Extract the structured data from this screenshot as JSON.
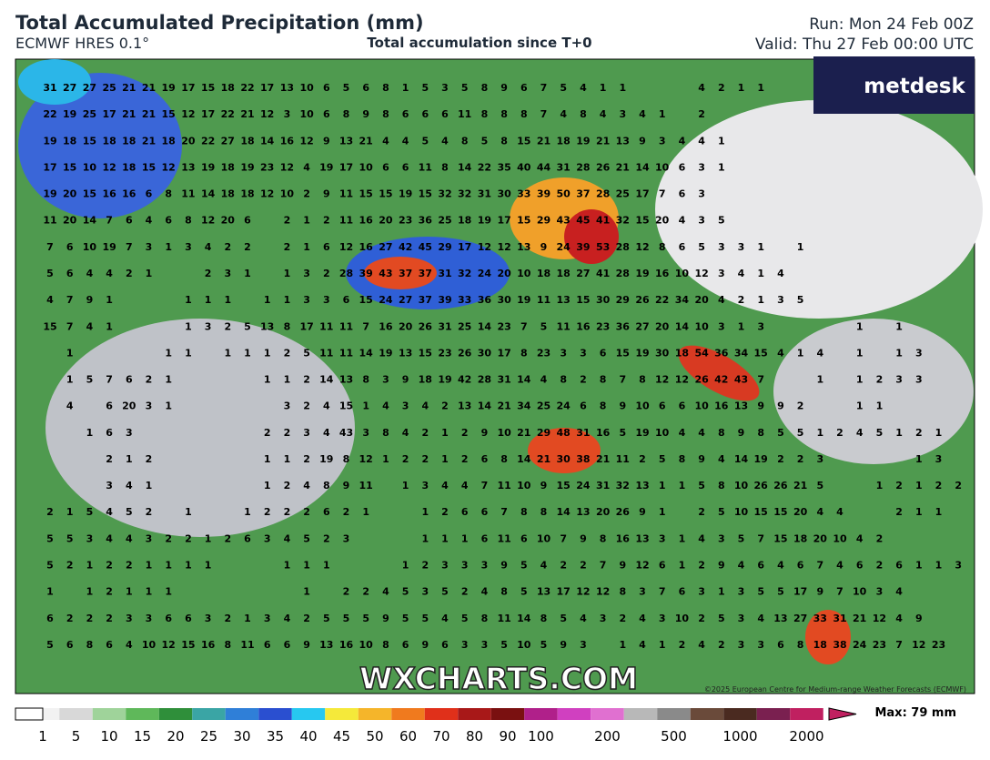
{
  "header": {
    "title": "Total Accumulated Precipitation (mm)",
    "model": "ECMWF HRES 0.1°",
    "subtitle": "Total accumulation since T+0",
    "run": "Run: Mon 24 Feb 00Z",
    "valid": "Valid: Thu 27 Feb 00:00 UTC"
  },
  "logo": "metdesk",
  "watermark": "WXCHARTS.COM",
  "copyright": "©2025 European Centre for Medium-range Weather Forecasts (ECMWF)",
  "grid": {
    "rows": [
      [
        31,
        27,
        27,
        25,
        21,
        21,
        19,
        17,
        15,
        18,
        22,
        17,
        13,
        10,
        6,
        5,
        6,
        8,
        1,
        5,
        3,
        5,
        8,
        9,
        6,
        7,
        5,
        4,
        1,
        1,
        null,
        null,
        null,
        4,
        2,
        1,
        1
      ],
      [
        22,
        19,
        25,
        17,
        21,
        21,
        15,
        12,
        17,
        22,
        21,
        12,
        3,
        10,
        6,
        8,
        9,
        8,
        6,
        6,
        6,
        11,
        8,
        8,
        8,
        7,
        4,
        8,
        4,
        3,
        4,
        1,
        null,
        2
      ],
      [
        19,
        18,
        15,
        18,
        18,
        21,
        18,
        20,
        22,
        27,
        18,
        14,
        16,
        12,
        9,
        13,
        21,
        4,
        4,
        5,
        4,
        8,
        5,
        8,
        15,
        21,
        18,
        19,
        21,
        13,
        9,
        3,
        4,
        4,
        1
      ],
      [
        17,
        15,
        10,
        12,
        18,
        15,
        12,
        13,
        19,
        18,
        19,
        23,
        12,
        4,
        19,
        17,
        10,
        6,
        6,
        11,
        8,
        14,
        22,
        35,
        40,
        44,
        31,
        28,
        26,
        21,
        14,
        10,
        6,
        3,
        1
      ],
      [
        19,
        20,
        15,
        16,
        16,
        6,
        8,
        11,
        14,
        18,
        18,
        12,
        10,
        2,
        9,
        11,
        15,
        15,
        19,
        15,
        32,
        32,
        31,
        30,
        33,
        39,
        50,
        37,
        28,
        25,
        17,
        7,
        6,
        3
      ],
      [
        11,
        20,
        14,
        7,
        6,
        4,
        6,
        8,
        12,
        20,
        6,
        null,
        2,
        1,
        2,
        11,
        16,
        20,
        23,
        36,
        25,
        18,
        19,
        17,
        15,
        29,
        43,
        45,
        41,
        32,
        15,
        20,
        4,
        3,
        5
      ],
      [
        7,
        6,
        10,
        19,
        7,
        3,
        1,
        3,
        4,
        2,
        2,
        null,
        2,
        1,
        6,
        12,
        16,
        27,
        42,
        45,
        29,
        17,
        12,
        12,
        13,
        9,
        24,
        39,
        53,
        28,
        12,
        8,
        6,
        5,
        3,
        3,
        1,
        null,
        1
      ],
      [
        5,
        6,
        4,
        4,
        2,
        1,
        null,
        null,
        2,
        3,
        1,
        null,
        1,
        3,
        2,
        28,
        39,
        43,
        37,
        37,
        31,
        32,
        24,
        20,
        10,
        18,
        18,
        27,
        41,
        28,
        19,
        16,
        10,
        12,
        3,
        4,
        1,
        4
      ],
      [
        4,
        7,
        9,
        1,
        null,
        null,
        null,
        1,
        1,
        1,
        null,
        1,
        1,
        3,
        3,
        6,
        15,
        24,
        27,
        37,
        39,
        33,
        36,
        30,
        19,
        11,
        13,
        15,
        30,
        29,
        26,
        22,
        34,
        20,
        4,
        2,
        1,
        3,
        5
      ],
      [
        15,
        7,
        4,
        1,
        null,
        null,
        null,
        1,
        3,
        2,
        5,
        13,
        8,
        17,
        11,
        11,
        7,
        16,
        20,
        26,
        31,
        25,
        14,
        23,
        7,
        5,
        11,
        16,
        23,
        36,
        27,
        20,
        14,
        10,
        3,
        1,
        3,
        null,
        null,
        null,
        null,
        1,
        null,
        1
      ],
      [
        null,
        1,
        null,
        null,
        null,
        null,
        1,
        1,
        null,
        1,
        1,
        1,
        2,
        5,
        11,
        11,
        14,
        19,
        13,
        15,
        23,
        26,
        30,
        17,
        8,
        23,
        3,
        3,
        6,
        15,
        19,
        30,
        18,
        54,
        36,
        34,
        15,
        4,
        1,
        4,
        null,
        1,
        null,
        1,
        3
      ],
      [
        null,
        1,
        5,
        7,
        6,
        2,
        1,
        null,
        null,
        null,
        null,
        1,
        1,
        2,
        14,
        13,
        8,
        3,
        9,
        18,
        19,
        42,
        28,
        31,
        14,
        4,
        8,
        2,
        8,
        7,
        8,
        12,
        12,
        26,
        42,
        43,
        7,
        null,
        null,
        1,
        null,
        1,
        2,
        3,
        3
      ],
      [
        null,
        4,
        null,
        6,
        20,
        3,
        1,
        null,
        null,
        null,
        null,
        null,
        3,
        2,
        4,
        15,
        1,
        4,
        3,
        4,
        2,
        13,
        14,
        21,
        34,
        25,
        24,
        6,
        8,
        9,
        10,
        6,
        6,
        10,
        16,
        13,
        9,
        9,
        2,
        null,
        null,
        1,
        1
      ],
      [
        null,
        null,
        1,
        6,
        3,
        null,
        null,
        null,
        null,
        null,
        null,
        2,
        2,
        3,
        4,
        43,
        3,
        8,
        4,
        2,
        1,
        2,
        9,
        10,
        21,
        29,
        48,
        31,
        16,
        5,
        19,
        10,
        4,
        4,
        8,
        9,
        8,
        5,
        5,
        1,
        2,
        4,
        5,
        1,
        2,
        1
      ],
      [
        null,
        null,
        null,
        2,
        1,
        2,
        null,
        null,
        null,
        null,
        null,
        1,
        1,
        2,
        19,
        8,
        12,
        1,
        2,
        2,
        1,
        2,
        6,
        8,
        14,
        21,
        30,
        38,
        21,
        11,
        2,
        5,
        8,
        9,
        4,
        14,
        19,
        2,
        2,
        3,
        null,
        null,
        null,
        null,
        1,
        3
      ],
      [
        null,
        null,
        null,
        3,
        4,
        1,
        null,
        null,
        null,
        null,
        null,
        1,
        2,
        4,
        8,
        9,
        11,
        null,
        1,
        3,
        4,
        4,
        7,
        11,
        10,
        9,
        15,
        24,
        31,
        32,
        13,
        1,
        1,
        5,
        8,
        10,
        26,
        26,
        21,
        5,
        null,
        null,
        1,
        2,
        1,
        2,
        2
      ],
      [
        2,
        1,
        5,
        4,
        5,
        2,
        null,
        1,
        null,
        null,
        1,
        2,
        2,
        2,
        6,
        2,
        1,
        null,
        null,
        1,
        2,
        6,
        6,
        7,
        8,
        8,
        14,
        13,
        20,
        26,
        9,
        1,
        null,
        2,
        5,
        10,
        15,
        15,
        20,
        4,
        4,
        null,
        null,
        2,
        1,
        1
      ],
      [
        5,
        5,
        3,
        4,
        4,
        3,
        2,
        2,
        1,
        2,
        6,
        3,
        4,
        5,
        2,
        3,
        null,
        null,
        null,
        1,
        1,
        1,
        6,
        11,
        6,
        10,
        7,
        9,
        8,
        16,
        13,
        3,
        1,
        4,
        3,
        5,
        7,
        15,
        18,
        20,
        10,
        4,
        2
      ],
      [
        5,
        2,
        1,
        2,
        2,
        1,
        1,
        1,
        1,
        null,
        null,
        null,
        1,
        1,
        1,
        null,
        null,
        null,
        1,
        2,
        3,
        3,
        3,
        9,
        5,
        4,
        2,
        2,
        7,
        9,
        12,
        6,
        1,
        2,
        9,
        4,
        6,
        4,
        6,
        7,
        4,
        6,
        2,
        6,
        1,
        1,
        3
      ],
      [
        1,
        null,
        1,
        2,
        1,
        1,
        1,
        null,
        null,
        null,
        null,
        null,
        null,
        1,
        null,
        2,
        2,
        4,
        5,
        3,
        5,
        2,
        4,
        8,
        5,
        13,
        17,
        12,
        12,
        8,
        3,
        7,
        6,
        3,
        1,
        3,
        5,
        5,
        17,
        9,
        7,
        10,
        3,
        4
      ],
      [
        6,
        2,
        2,
        2,
        3,
        3,
        6,
        6,
        3,
        2,
        1,
        3,
        4,
        2,
        5,
        5,
        5,
        9,
        5,
        5,
        4,
        5,
        8,
        11,
        14,
        8,
        5,
        4,
        3,
        2,
        4,
        3,
        10,
        2,
        5,
        3,
        4,
        13,
        27,
        33,
        31,
        21,
        12,
        4,
        9
      ],
      [
        5,
        6,
        8,
        6,
        4,
        10,
        12,
        15,
        16,
        8,
        11,
        6,
        6,
        9,
        13,
        16,
        10,
        8,
        6,
        9,
        6,
        3,
        3,
        5,
        10,
        5,
        9,
        3,
        null,
        1,
        4,
        1,
        2,
        4,
        2,
        3,
        3,
        6,
        8,
        18,
        38,
        24,
        23,
        7,
        12,
        23
      ]
    ]
  },
  "colorbar": {
    "ticks": [
      1,
      5,
      10,
      15,
      20,
      25,
      30,
      35,
      40,
      45,
      50,
      60,
      70,
      80,
      90,
      100,
      200,
      500,
      1000,
      2000
    ],
    "max": "Max: 79 mm"
  }
}
